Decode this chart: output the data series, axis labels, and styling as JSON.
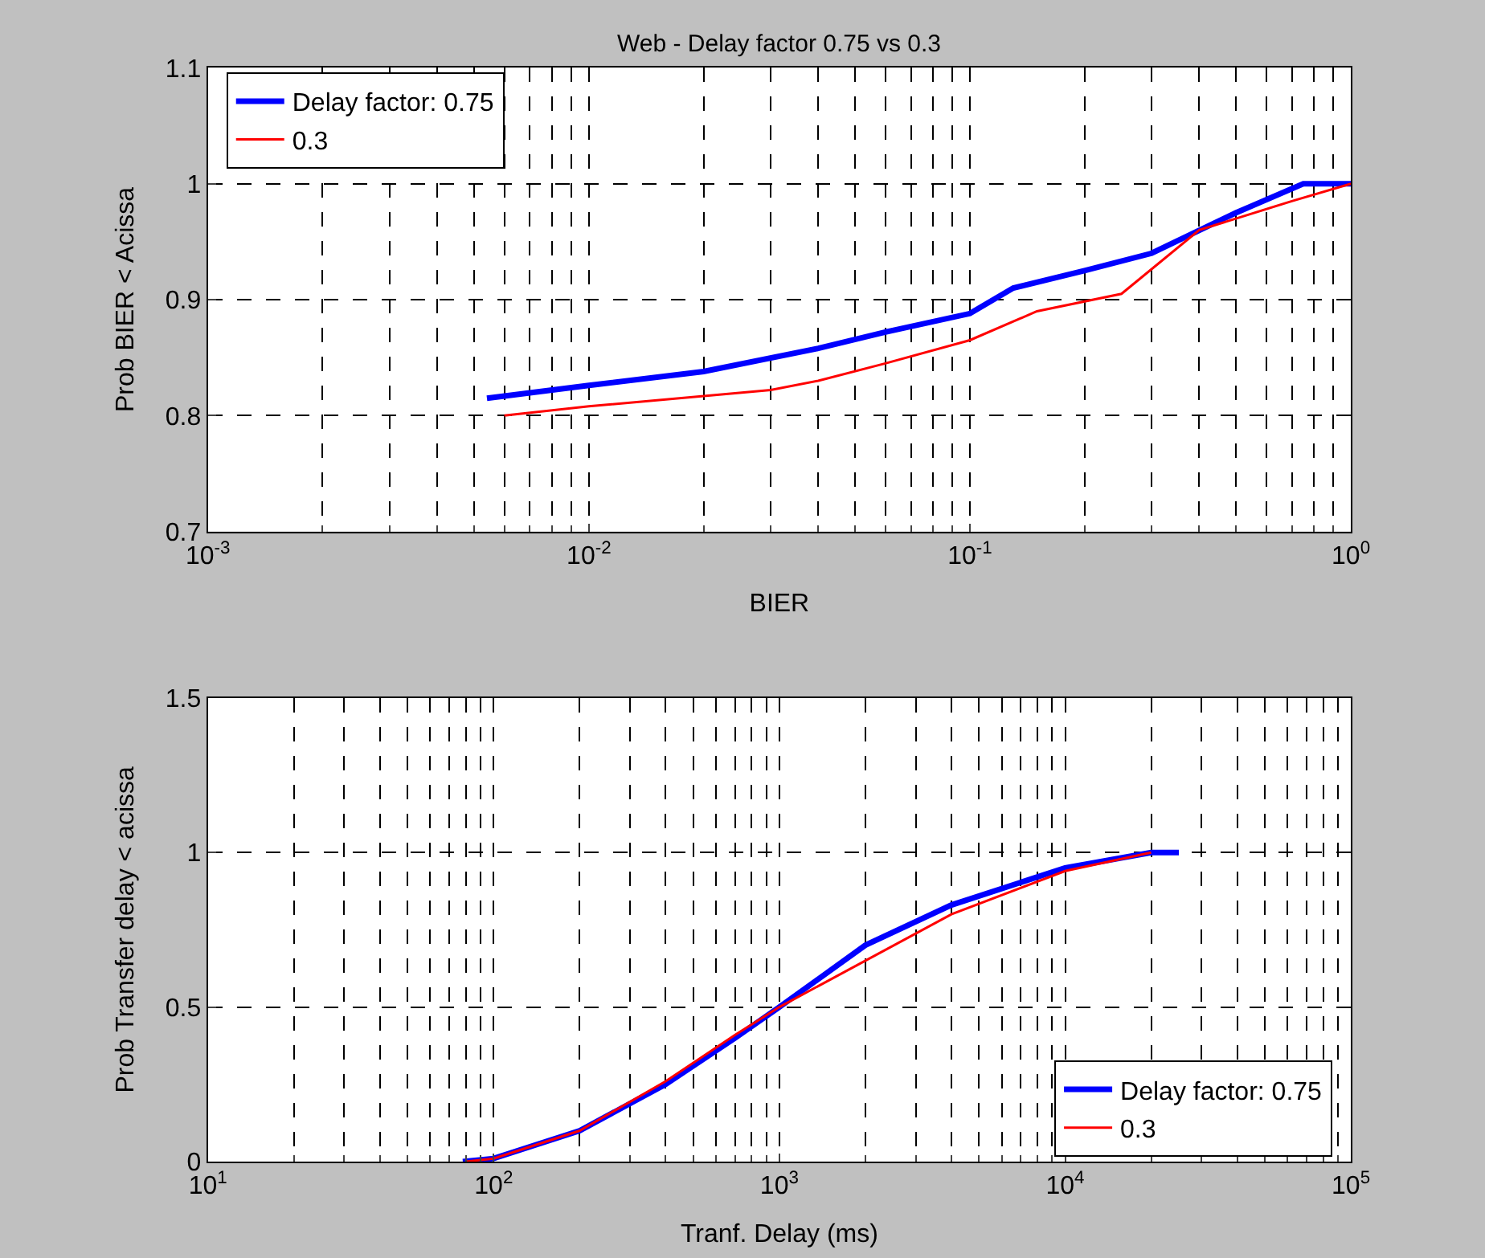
{
  "chart_data": [
    {
      "type": "line",
      "title": "Web - Delay factor 0.75 vs 0.3",
      "xlabel": "BIER",
      "ylabel": "Prob BIER < Acissa",
      "log": "x",
      "grid": true,
      "legend": "top left",
      "xlim": [
        0.001,
        1
      ],
      "xticks": [
        {
          "value": 0.001,
          "label": "10$^{-3}$"
        },
        {
          "value": 0.01,
          "label": "10$^{-2}$"
        },
        {
          "value": 0.1,
          "label": "10$^{-1}$"
        },
        {
          "value": 1,
          "label": "10$^{0}$"
        }
      ],
      "ylim": [
        0.7,
        1.1
      ],
      "yticks": [
        0.7,
        0.8,
        0.9,
        1,
        1.1
      ],
      "series": [
        {
          "name": "Delay factor: 0.75",
          "color": "#0000ff",
          "x": [
            0.0054,
            0.01,
            0.02,
            0.04,
            0.06,
            0.1,
            0.13,
            0.2,
            0.3,
            0.5,
            0.75,
            1
          ],
          "values": [
            0.815,
            0.826,
            0.838,
            0.858,
            0.872,
            0.888,
            0.91,
            0.925,
            0.94,
            0.975,
            1.0,
            1.0
          ]
        },
        {
          "name": "0.3",
          "color": "#ff0000",
          "x": [
            0.006,
            0.01,
            0.03,
            0.04,
            0.06,
            0.1,
            0.15,
            0.25,
            0.4,
            0.7,
            1
          ],
          "values": [
            0.8,
            0.808,
            0.822,
            0.83,
            0.845,
            0.865,
            0.89,
            0.905,
            0.96,
            0.985,
            1.0
          ]
        }
      ]
    },
    {
      "type": "line",
      "xlabel": "Tranf. Delay (ms)",
      "ylabel": "Prob Transfer delay < acissa",
      "log": "x",
      "grid": true,
      "legend": "bottom right",
      "xlim": [
        10,
        100000
      ],
      "xticks": [
        {
          "value": 10,
          "label": "10$^{1}$"
        },
        {
          "value": 100,
          "label": "10$^{2}$"
        },
        {
          "value": 1000,
          "label": "10$^{3}$"
        },
        {
          "value": 10000,
          "label": "10$^{4}$"
        },
        {
          "value": 100000,
          "label": "10$^{5}$"
        }
      ],
      "ylim": [
        0,
        1.5
      ],
      "yticks": [
        0,
        0.5,
        1,
        1.5
      ],
      "series": [
        {
          "name": "Delay factor: 0.75",
          "color": "#0000ff",
          "x": [
            78,
            100,
            200,
            400,
            700,
            1000,
            2000,
            4000,
            10000,
            20000,
            25000
          ],
          "values": [
            0,
            0.01,
            0.1,
            0.25,
            0.4,
            0.5,
            0.7,
            0.83,
            0.95,
            1.0,
            1.0
          ]
        },
        {
          "name": "0.3",
          "color": "#ff0000",
          "x": [
            80,
            100,
            200,
            400,
            700,
            1000,
            2000,
            4000,
            10000,
            20000
          ],
          "values": [
            0,
            0.01,
            0.1,
            0.26,
            0.41,
            0.5,
            0.65,
            0.8,
            0.94,
            1.0
          ]
        }
      ]
    }
  ]
}
